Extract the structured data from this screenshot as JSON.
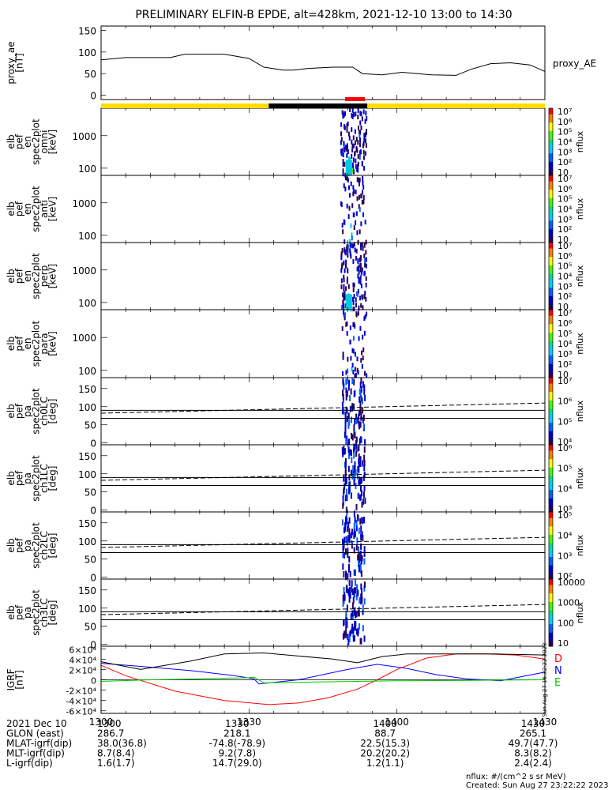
{
  "chart_data": {
    "type": "spectrogram",
    "title": "PRELIMINARY ELFIN-B EPDE, alt=428km, 2021-12-10 13:00 to 14:30",
    "time_range": [
      "13:00",
      "14:30"
    ],
    "x_ticks": [
      "1300",
      "1330",
      "1400",
      "1430"
    ],
    "x_tick_minutes": [
      0,
      30,
      60,
      90
    ],
    "panels": [
      {
        "id": "proxy_ae",
        "type": "line",
        "ylabel": [
          "proxy_ae",
          "[nT]"
        ],
        "yticks": [
          0,
          50,
          100,
          150
        ],
        "ylim": [
          -10,
          160
        ],
        "series_name": "proxy_AE",
        "x": [
          0,
          5,
          14,
          17,
          25,
          30,
          33,
          37,
          39,
          42,
          47,
          51,
          53,
          57,
          61,
          67,
          72,
          75,
          79,
          83,
          87,
          90
        ],
        "y": [
          82,
          87,
          87,
          95,
          95,
          85,
          65,
          58,
          58,
          62,
          65,
          65,
          50,
          47,
          53,
          47,
          46,
          60,
          73,
          75,
          70,
          55
        ]
      },
      {
        "id": "omni",
        "type": "spectrogram",
        "ylabel": [
          "elb",
          "pef",
          "en",
          "spec2plot",
          "omni",
          "[keV]"
        ],
        "yticks": [
          "100",
          "1000"
        ],
        "ylim": [
          60,
          7000
        ],
        "yscale": "log",
        "colorbar": {
          "label": "nflux",
          "ticks": [
            "10",
            "10²",
            "10³",
            "10⁴",
            "10⁵",
            "10⁶",
            "10⁷"
          ]
        }
      },
      {
        "id": "anti",
        "type": "spectrogram",
        "ylabel": [
          "elb",
          "pef",
          "en",
          "spec2plot",
          "anti",
          "[keV]"
        ],
        "yticks": [
          "100",
          "1000"
        ],
        "ylim": [
          60,
          7000
        ],
        "yscale": "log",
        "colorbar": {
          "label": "nflux",
          "ticks": [
            "10",
            "10²",
            "10³",
            "10⁴",
            "10⁵",
            "10⁶",
            "10⁷"
          ]
        }
      },
      {
        "id": "perp",
        "type": "spectrogram",
        "ylabel": [
          "elb",
          "pef",
          "en",
          "spec2plot",
          "perp",
          "[keV]"
        ],
        "yticks": [
          "100",
          "1000"
        ],
        "ylim": [
          60,
          7000
        ],
        "yscale": "log",
        "colorbar": {
          "label": "nflux",
          "ticks": [
            "10",
            "10²",
            "10³",
            "10⁴",
            "10⁵",
            "10⁶",
            "10⁷"
          ]
        }
      },
      {
        "id": "para",
        "type": "spectrogram",
        "ylabel": [
          "elb",
          "pef",
          "en",
          "spec2plot",
          "para",
          "[keV]"
        ],
        "yticks": [
          "100",
          "1000"
        ],
        "ylim": [
          60,
          7000
        ],
        "yscale": "log",
        "colorbar": {
          "label": "nflux",
          "ticks": [
            "10",
            "10²",
            "10³",
            "10⁴",
            "10⁵",
            "10⁶",
            "10⁷"
          ]
        }
      },
      {
        "id": "ch0LC",
        "type": "pitch_angle",
        "ylabel": [
          "elb",
          "pef",
          "pa",
          "spec2plot",
          "ch0LC",
          "[deg]"
        ],
        "yticks": [
          0,
          50,
          100,
          150
        ],
        "ylim": [
          -5,
          180
        ],
        "colorbar": {
          "label": "nflux",
          "ticks": [
            "10⁴",
            "10⁵",
            "10⁶",
            "10⁷"
          ]
        }
      },
      {
        "id": "ch1LC",
        "type": "pitch_angle",
        "ylabel": [
          "elb",
          "pef",
          "pa",
          "spec2plot",
          "ch1LC",
          "[deg]"
        ],
        "yticks": [
          0,
          50,
          100,
          150
        ],
        "ylim": [
          -5,
          180
        ],
        "colorbar": {
          "label": "nflux",
          "ticks": [
            "10³",
            "10⁴",
            "10⁵",
            "10⁶"
          ]
        }
      },
      {
        "id": "ch2LC",
        "type": "pitch_angle",
        "ylabel": [
          "elb",
          "pef",
          "pa",
          "spec2plot",
          "ch2LC",
          "[deg]"
        ],
        "yticks": [
          0,
          50,
          100,
          150
        ],
        "ylim": [
          -5,
          180
        ],
        "colorbar": {
          "label": "nflux",
          "ticks": [
            "10²",
            "10³",
            "10⁴",
            "10⁵"
          ]
        }
      },
      {
        "id": "ch3LC",
        "type": "pitch_angle",
        "ylabel": [
          "elb",
          "pef",
          "pa",
          "spec2plot",
          "ch3LC",
          "[deg]"
        ],
        "yticks": [
          0,
          50,
          100,
          150
        ],
        "ylim": [
          -5,
          180
        ],
        "colorbar": {
          "label": "nflux",
          "ticks": [
            "10",
            "100",
            "1000",
            "10000"
          ]
        }
      },
      {
        "id": "igrf",
        "type": "line",
        "ylabel": [
          "IGRF",
          "[nT]"
        ],
        "yticks": [
          "-6×10⁴",
          "-4×10⁴",
          "-2×10⁴",
          "0",
          "2×10⁴",
          "4×10⁴",
          "6×10⁴"
        ],
        "ytick_values": [
          -60000,
          -40000,
          -20000,
          0,
          20000,
          40000,
          60000
        ],
        "ylim": [
          -65000,
          65000
        ],
        "legend": [
          "D",
          "N",
          "E"
        ],
        "series": [
          {
            "name": "D",
            "color": "#ff0000",
            "x": [
              0,
              5,
              15,
              25,
              34,
              40,
              46,
              52,
              56,
              60,
              66,
              72,
              78,
              84,
              90
            ],
            "y": [
              28000,
              8000,
              -22000,
              -40000,
              -48000,
              -45000,
              -35000,
              -18000,
              0,
              20000,
              42000,
              50000,
              50000,
              48000,
              40000
            ]
          },
          {
            "name": "N",
            "color": "#0000ff",
            "x": [
              0,
              8,
              18,
              27,
              31,
              32,
              40,
              50,
              56,
              62,
              68,
              74,
              81,
              90
            ],
            "y": [
              32000,
              26000,
              18000,
              8000,
              2000,
              -8000,
              0,
              20000,
              30000,
              22000,
              10000,
              2000,
              -2000,
              15000
            ]
          },
          {
            "name": "E",
            "color": "#00cc00",
            "x": [
              0,
              10,
              20,
              30,
              31,
              33,
              45,
              60,
              75,
              90
            ],
            "y": [
              -3000,
              0,
              2000,
              4000,
              5000,
              -6000,
              -4000,
              -2000,
              -1000,
              0
            ]
          },
          {
            "name": "",
            "color": "#000000",
            "x": [
              0,
              8,
              18,
              25,
              33,
              40,
              47,
              52,
              57,
              62,
              70,
              80,
              90
            ],
            "y": [
              35000,
              20000,
              36000,
              50000,
              52000,
              46000,
              40000,
              33000,
              45000,
              50000,
              50000,
              50000,
              48000
            ]
          }
        ],
        "colorbar_label": "Sun Aug 27 16:32:22 2023"
      }
    ],
    "status_bar": {
      "segments": [
        {
          "from": 0,
          "to": 34,
          "color": "#ffdd00"
        },
        {
          "from": 34,
          "to": 54,
          "color": "#000000"
        },
        {
          "from": 54,
          "to": 90,
          "color": "#ffdd00"
        }
      ],
      "science_zone": {
        "from": 49.5,
        "to": 53.5,
        "color": "#ff0000"
      }
    },
    "ephemeris": {
      "rows": [
        {
          "label": "2021 Dec 10",
          "values": [
            "1300",
            "1330",
            "1400",
            "1430"
          ]
        },
        {
          "label": "GLON (east)",
          "values": [
            "286.7",
            "218.1",
            "88.7",
            "265.1"
          ]
        },
        {
          "label": "MLAT-igrf(dip)",
          "values": [
            "38.0(36.8)",
            "-74.8(-78.9)",
            "22.5(15.3)",
            "49.7(47.7)"
          ]
        },
        {
          "label": "MLT-igrf(dip)",
          "values": [
            "8.7(8.4)",
            "9.2(7.8)",
            "20.2(20.2)",
            "8.3(8.2)"
          ]
        },
        {
          "label": "L-igrf(dip)",
          "values": [
            "1.6(1.7)",
            "14.7(29.0)",
            "1.2(1.1)",
            "2.4(2.4)"
          ]
        }
      ]
    },
    "footer": [
      "nflux: #/(cm^2 s sr MeV)",
      "Created: Sun Aug 27 23:22:22 2023"
    ]
  }
}
